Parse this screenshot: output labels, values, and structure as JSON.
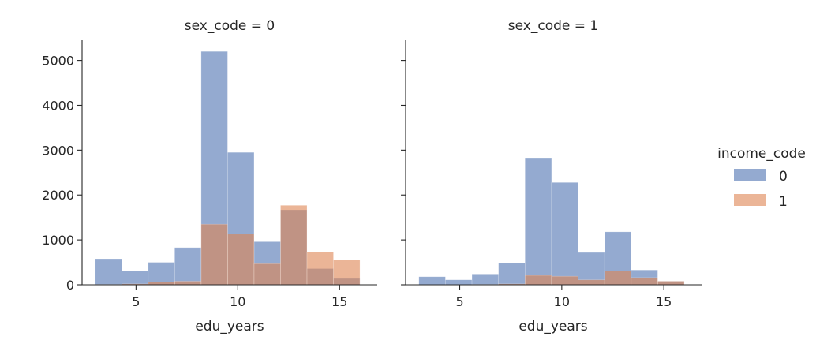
{
  "chart_data": {
    "type": "bar",
    "subtype": "faceted-histogram-overlay",
    "xlabel": "edu_years",
    "ylabel": "",
    "xlim": [
      2.35,
      16.85
    ],
    "ylim": [
      0,
      5450
    ],
    "xticks": [
      5,
      10,
      15
    ],
    "yticks": [
      0,
      1000,
      2000,
      3000,
      4000,
      5000
    ],
    "sharey": true,
    "legend": {
      "title": "income_code",
      "placement": "right",
      "entries": [
        {
          "label": "0",
          "color": "#4c72b0"
        },
        {
          "label": "1",
          "color": "#dd8452"
        }
      ]
    },
    "opacity": 0.6,
    "panels": [
      {
        "title": "sex_code = 0",
        "series": [
          {
            "name": "0",
            "color": "#4c72b0",
            "bins": [
              {
                "x0": 3.0,
                "x1": 4.3,
                "y": 580
              },
              {
                "x0": 4.3,
                "x1": 5.6,
                "y": 310
              },
              {
                "x0": 5.6,
                "x1": 6.9,
                "y": 500
              },
              {
                "x0": 6.9,
                "x1": 8.2,
                "y": 830
              },
              {
                "x0": 8.2,
                "x1": 9.5,
                "y": 5200
              },
              {
                "x0": 9.5,
                "x1": 10.8,
                "y": 2950
              },
              {
                "x0": 10.8,
                "x1": 12.1,
                "y": 960
              },
              {
                "x0": 12.1,
                "x1": 13.4,
                "y": 1670
              },
              {
                "x0": 13.4,
                "x1": 14.7,
                "y": 360
              },
              {
                "x0": 14.7,
                "x1": 16.0,
                "y": 140
              }
            ]
          },
          {
            "name": "1",
            "color": "#dd8452",
            "bins": [
              {
                "x0": 3.0,
                "x1": 4.3,
                "y": 10
              },
              {
                "x0": 4.3,
                "x1": 5.6,
                "y": 20
              },
              {
                "x0": 5.6,
                "x1": 6.9,
                "y": 60
              },
              {
                "x0": 6.9,
                "x1": 8.2,
                "y": 80
              },
              {
                "x0": 8.2,
                "x1": 9.5,
                "y": 1350
              },
              {
                "x0": 9.5,
                "x1": 10.8,
                "y": 1130
              },
              {
                "x0": 10.8,
                "x1": 12.1,
                "y": 470
              },
              {
                "x0": 12.1,
                "x1": 13.4,
                "y": 1770
              },
              {
                "x0": 13.4,
                "x1": 14.7,
                "y": 730
              },
              {
                "x0": 14.7,
                "x1": 16.0,
                "y": 560
              }
            ]
          }
        ]
      },
      {
        "title": "sex_code = 1",
        "series": [
          {
            "name": "0",
            "color": "#4c72b0",
            "bins": [
              {
                "x0": 3.0,
                "x1": 4.3,
                "y": 180
              },
              {
                "x0": 4.3,
                "x1": 5.6,
                "y": 110
              },
              {
                "x0": 5.6,
                "x1": 6.9,
                "y": 240
              },
              {
                "x0": 6.9,
                "x1": 8.2,
                "y": 480
              },
              {
                "x0": 8.2,
                "x1": 9.5,
                "y": 2830
              },
              {
                "x0": 9.5,
                "x1": 10.8,
                "y": 2280
              },
              {
                "x0": 10.8,
                "x1": 12.1,
                "y": 720
              },
              {
                "x0": 12.1,
                "x1": 13.4,
                "y": 1180
              },
              {
                "x0": 13.4,
                "x1": 14.7,
                "y": 330
              },
              {
                "x0": 14.7,
                "x1": 16.0,
                "y": 80
              }
            ]
          },
          {
            "name": "1",
            "color": "#dd8452",
            "bins": [
              {
                "x0": 3.0,
                "x1": 4.3,
                "y": 5
              },
              {
                "x0": 4.3,
                "x1": 5.6,
                "y": 5
              },
              {
                "x0": 5.6,
                "x1": 6.9,
                "y": 10
              },
              {
                "x0": 6.9,
                "x1": 8.2,
                "y": 20
              },
              {
                "x0": 8.2,
                "x1": 9.5,
                "y": 210
              },
              {
                "x0": 9.5,
                "x1": 10.8,
                "y": 190
              },
              {
                "x0": 10.8,
                "x1": 12.1,
                "y": 110
              },
              {
                "x0": 12.1,
                "x1": 13.4,
                "y": 310
              },
              {
                "x0": 13.4,
                "x1": 14.7,
                "y": 160
              },
              {
                "x0": 14.7,
                "x1": 16.0,
                "y": 80
              }
            ]
          }
        ]
      }
    ]
  }
}
